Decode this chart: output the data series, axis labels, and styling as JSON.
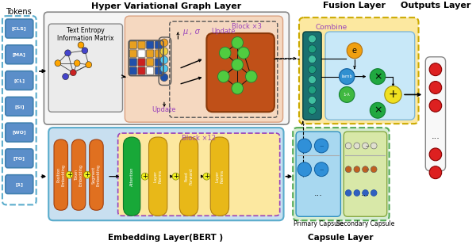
{
  "title_hvg": "Hyper Variational Graph Layer",
  "title_fusion": "Fusion Layer",
  "title_outputs": "Outputs Layer",
  "title_embedding": "Embedding Layer(BERT )",
  "title_capsule": "Capsule Layer",
  "title_block3": "Block ×3",
  "title_block12": "Block ×12",
  "title_combine": "Combine",
  "title_primary": "Primary Capsule",
  "title_secondary": "Secondary Capsule",
  "title_tokens": "Tokens",
  "label_mu_sigma": "μ , σ",
  "label_update1": "Update",
  "label_update2": "Update",
  "label_text_entropy": "Text Entropy\nInformation Matrix",
  "bg_color": "#ffffff"
}
